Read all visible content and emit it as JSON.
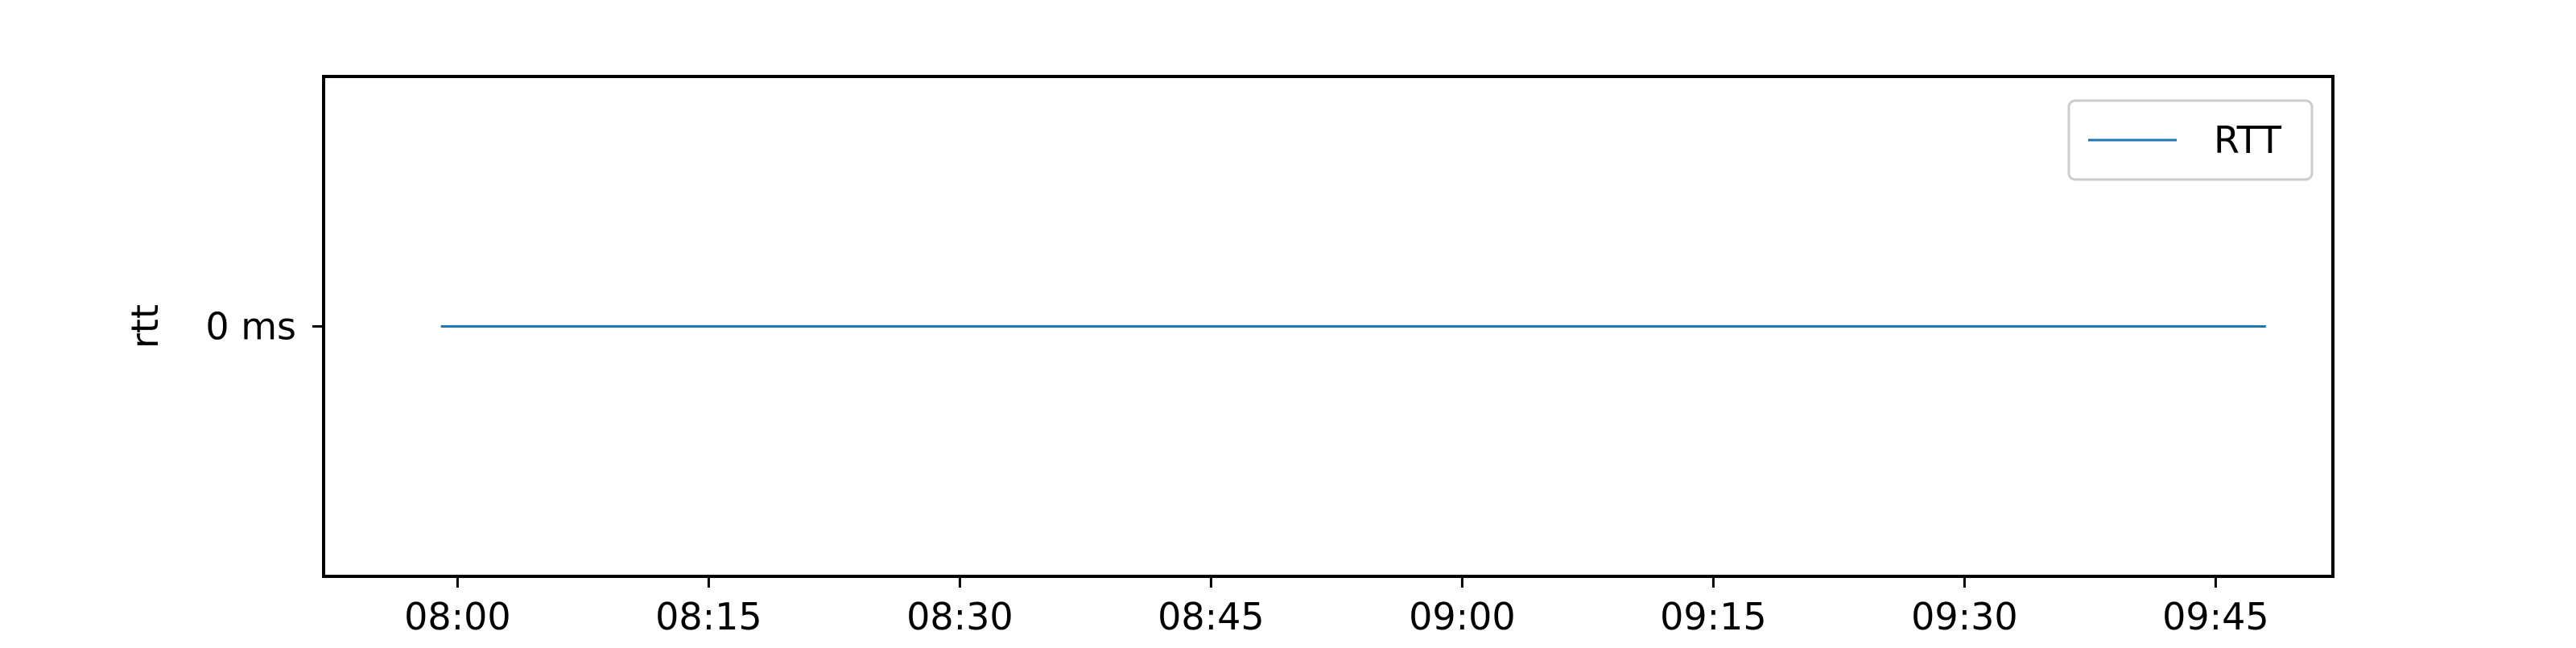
{
  "chart_data": {
    "type": "line",
    "title": "",
    "xlabel": "",
    "ylabel": "rtt",
    "x_tick_labels": [
      "08:00",
      "08:15",
      "08:30",
      "08:45",
      "09:00",
      "09:15",
      "09:30",
      "09:45"
    ],
    "x_range": [
      "07:59",
      "09:48"
    ],
    "xlim": [
      "07:52",
      "09:52"
    ],
    "y_tick_labels": [
      "0 ms"
    ],
    "y_ticks": [
      0
    ],
    "ylim": [
      -0.05,
      0.05
    ],
    "grid": false,
    "legend_position": "top-right",
    "series": [
      {
        "name": "RTT",
        "color": "#1f77b4",
        "x": [
          "07:59",
          "09:48"
        ],
        "y": [
          0,
          0
        ]
      }
    ]
  }
}
